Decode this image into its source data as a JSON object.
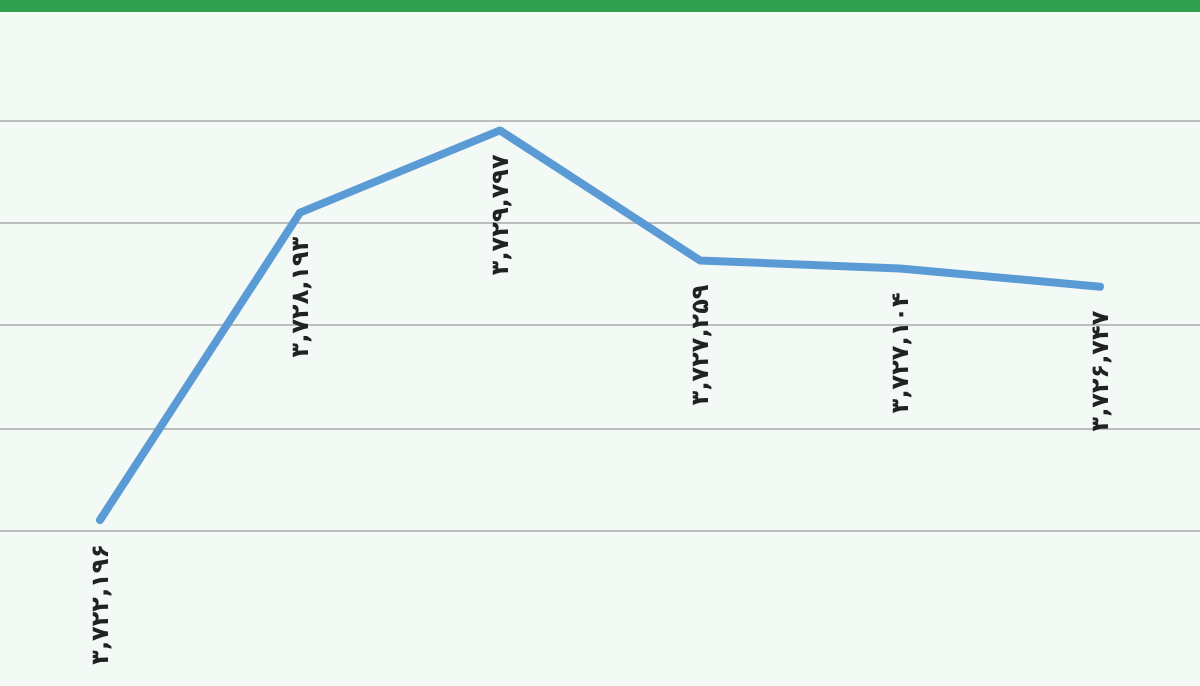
{
  "chart_data": {
    "type": "line",
    "categories": [
      null,
      null,
      null,
      null,
      null,
      null
    ],
    "series": [
      {
        "color": "#5b9bd5",
        "values": [
          3722196,
          3728193,
          3729797,
          3727259,
          3727104,
          3726747
        ],
        "value_labels": [
          "۳,۷۲۲,۱۹۶",
          "۳,۷۲۸,۱۹۳",
          "۳,۷۲۹,۷۹۷",
          "۳,۷۲۷,۲۵۹",
          "۳,۷۲۷,۱۰۴",
          "۳,۷۲۶,۷۴۷"
        ]
      }
    ],
    "grid": "y",
    "tick_labels": false,
    "marker": "none",
    "line_style": "solid"
  }
}
